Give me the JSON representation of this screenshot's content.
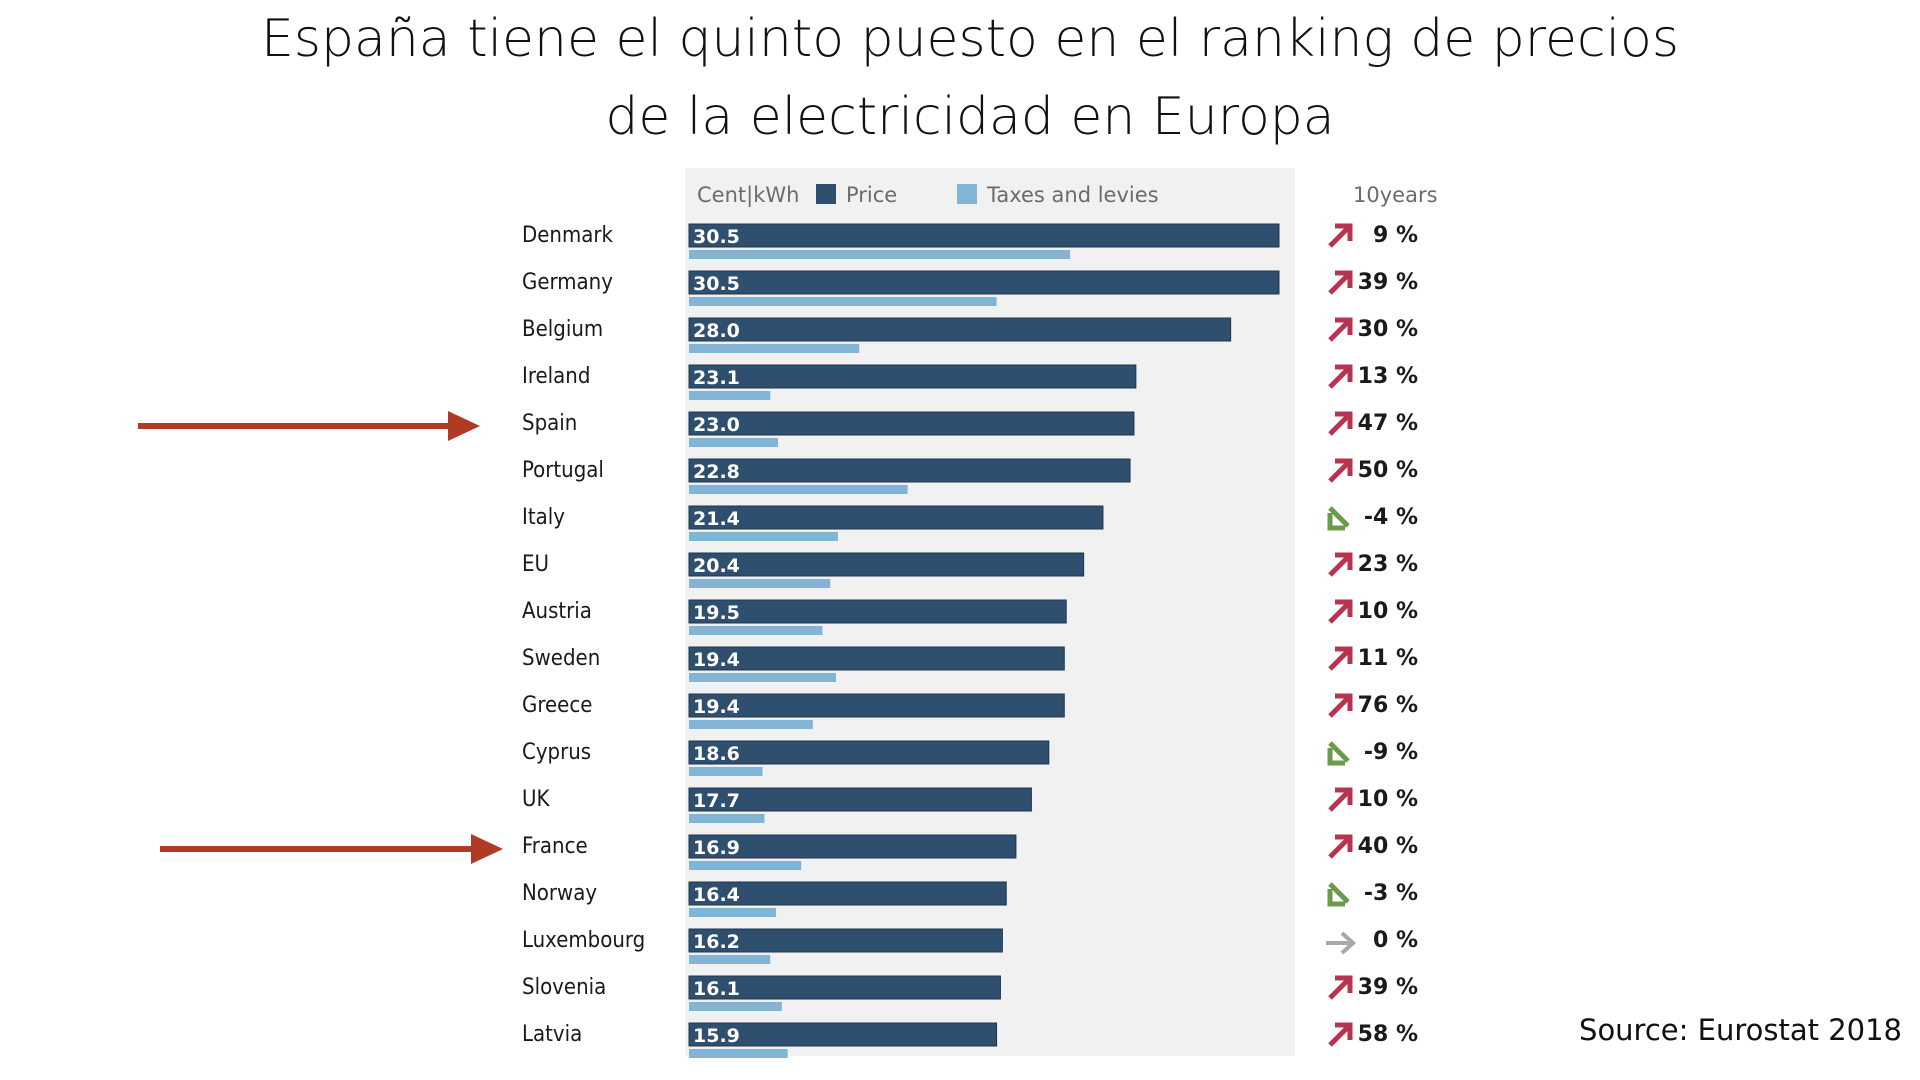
{
  "slide": {
    "title_line1": "España tiene el quinto puesto en el ranking de precios",
    "title_line2": "de la electricidad en Europa",
    "source": "Source: Eurostat 2018"
  },
  "chart_data": {
    "type": "bar",
    "unit_label": "Cent|kWh",
    "change_header": "10years",
    "categories": [
      "Denmark",
      "Germany",
      "Belgium",
      "Ireland",
      "Spain",
      "Portugal",
      "Italy",
      "EU",
      "Austria",
      "Sweden",
      "Greece",
      "Cyprus",
      "UK",
      "France",
      "Norway",
      "Luxembourg",
      "Slovenia",
      "Latvia"
    ],
    "series": [
      {
        "name": "Price",
        "color": "#2e4f6e",
        "values": [
          30.5,
          30.5,
          28.0,
          23.1,
          23.0,
          22.8,
          21.4,
          20.4,
          19.5,
          19.4,
          19.4,
          18.6,
          17.7,
          16.9,
          16.4,
          16.2,
          16.1,
          15.9
        ]
      },
      {
        "name": "Taxes and levies",
        "color": "#82b4d6",
        "values": [
          19.7,
          15.9,
          8.8,
          4.2,
          4.6,
          11.3,
          7.7,
          7.3,
          6.9,
          7.6,
          6.4,
          3.8,
          3.9,
          5.8,
          4.5,
          4.2,
          4.8,
          5.1
        ]
      }
    ],
    "value_labels": [
      "30.5",
      "30.5",
      "28.0",
      "23.1",
      "23.0",
      "22.8",
      "21.4",
      "20.4",
      "19.5",
      "19.4",
      "19.4",
      "18.6",
      "17.7",
      "16.9",
      "16.4",
      "16.2",
      "16.1",
      "15.9"
    ],
    "change_10y": [
      "9 %",
      "39 %",
      "30 %",
      "13 %",
      "47 %",
      "50 %",
      "-4 %",
      "23 %",
      "10 %",
      "11 %",
      "76 %",
      "-9 %",
      "10 %",
      "40 %",
      "-3 %",
      "0 %",
      "39 %",
      "58 %"
    ],
    "trend": [
      "up",
      "up",
      "up",
      "up",
      "up",
      "up",
      "down",
      "up",
      "up",
      "up",
      "up",
      "down",
      "up",
      "up",
      "down",
      "flat",
      "up",
      "up"
    ],
    "trend_colors": {
      "up": "#b8334f",
      "down": "#6b9a4a",
      "flat": "#a8a8a8"
    },
    "highlighted": [
      "Spain",
      "France"
    ],
    "highlight_arrow_color": "#b03a24",
    "xlim": [
      0,
      30.5
    ]
  }
}
